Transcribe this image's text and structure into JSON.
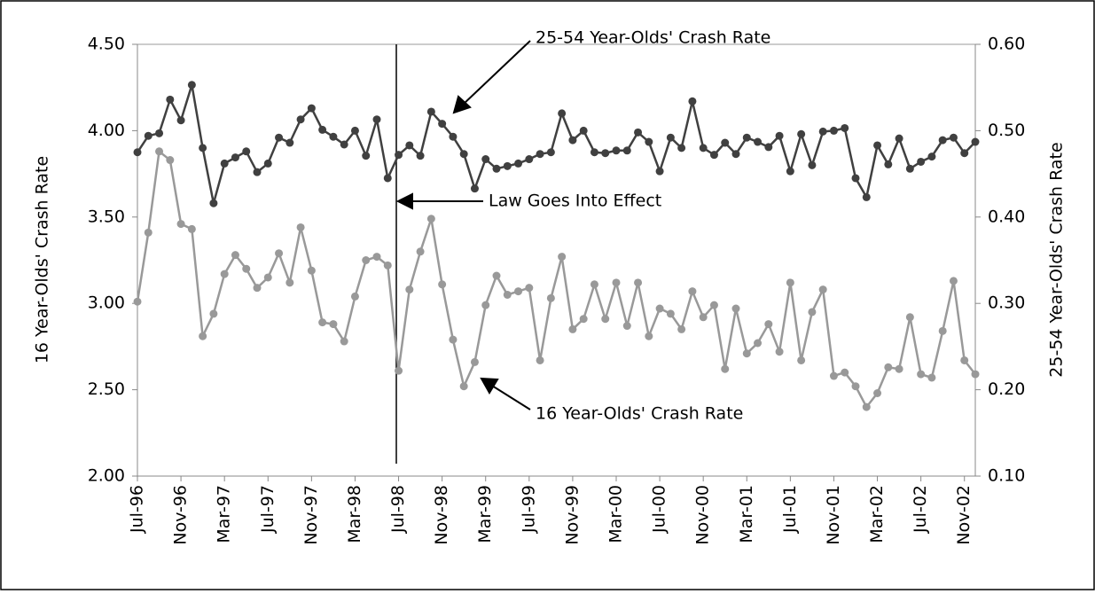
{
  "chart_data": {
    "type": "line",
    "categories": [
      "Jul-96",
      null,
      null,
      null,
      "Nov-96",
      null,
      null,
      null,
      "Mar-97",
      null,
      null,
      null,
      "Jul-97",
      null,
      null,
      null,
      "Nov-97",
      null,
      null,
      null,
      "Mar-98",
      null,
      null,
      null,
      "Jul-98",
      null,
      null,
      null,
      "Nov-98",
      null,
      null,
      null,
      "Mar-99",
      null,
      null,
      null,
      "Jul-99",
      null,
      null,
      null,
      "Nov-99",
      null,
      null,
      null,
      "Mar-00",
      null,
      null,
      null,
      "Jul-00",
      null,
      null,
      null,
      "Nov-00",
      null,
      null,
      null,
      "Mar-01",
      null,
      null,
      null,
      "Jul-01",
      null,
      null,
      null,
      "Nov-01",
      null,
      null,
      null,
      "Mar-02",
      null,
      null,
      null,
      "Jul-02",
      null,
      null,
      null,
      "Nov-02",
      null
    ],
    "series": [
      {
        "name": "25-54 Year-Olds' Crash Rate",
        "color": "#404040",
        "axis": "y2",
        "values": [
          0.475,
          0.494,
          0.497,
          0.536,
          0.512,
          0.553,
          0.48,
          0.416,
          0.462,
          0.469,
          0.476,
          0.452,
          0.462,
          0.492,
          0.486,
          0.513,
          0.526,
          0.501,
          0.493,
          0.484,
          0.5,
          0.471,
          0.513,
          0.445,
          0.472,
          0.483,
          0.471,
          0.522,
          0.508,
          0.493,
          0.473,
          0.433,
          0.467,
          0.456,
          0.459,
          0.462,
          0.467,
          0.473,
          0.475,
          0.52,
          0.489,
          0.5,
          0.475,
          0.474,
          0.477,
          0.477,
          0.498,
          0.487,
          0.453,
          0.492,
          0.48,
          0.534,
          0.48,
          0.472,
          0.486,
          0.473,
          0.492,
          0.487,
          0.481,
          0.494,
          0.453,
          0.496,
          0.46,
          0.499,
          0.5,
          0.503,
          0.445,
          0.423,
          0.483,
          0.461,
          0.491,
          0.456,
          0.464,
          0.47,
          0.489,
          0.492,
          0.474,
          0.487
        ]
      },
      {
        "name": "16 Year-Olds' Crash Rate",
        "color": "#999999",
        "axis": "y",
        "values": [
          3.01,
          3.41,
          3.88,
          3.83,
          3.46,
          3.43,
          2.81,
          2.94,
          3.17,
          3.28,
          3.2,
          3.09,
          3.15,
          3.29,
          3.12,
          3.44,
          3.19,
          2.89,
          2.88,
          2.78,
          3.04,
          3.25,
          3.27,
          3.22,
          2.61,
          3.08,
          3.3,
          3.49,
          3.11,
          2.79,
          2.52,
          2.66,
          2.99,
          3.16,
          3.05,
          3.07,
          3.09,
          2.67,
          3.03,
          3.27,
          2.85,
          2.91,
          3.11,
          2.91,
          3.12,
          2.87,
          3.12,
          2.81,
          2.97,
          2.94,
          2.85,
          3.07,
          2.92,
          2.99,
          2.62,
          2.97,
          2.71,
          2.77,
          2.88,
          2.72,
          3.12,
          2.67,
          2.95,
          3.08,
          2.58,
          2.6,
          2.52,
          2.4,
          2.48,
          2.63,
          2.62,
          2.92,
          2.59,
          2.57,
          2.84,
          3.13,
          2.67,
          2.59
        ]
      }
    ],
    "ylabel": "16 Year-Olds' Crash Rate",
    "y2label": "25-54 Year-Olds' Crash Rate",
    "annotation": "Law Goes Into Effect",
    "ylim": [
      2.0,
      4.5
    ],
    "yticks": [
      {
        "value": 2.0,
        "label": "2.00"
      },
      {
        "value": 2.5,
        "label": "2.50"
      },
      {
        "value": 3.0,
        "label": "3.00"
      },
      {
        "value": 3.5,
        "label": "3.50"
      },
      {
        "value": 4.0,
        "label": "4.00"
      },
      {
        "value": 4.5,
        "label": "4.50"
      }
    ],
    "y2lim": [
      0.1,
      0.6
    ],
    "y2ticks": [
      {
        "value": 0.1,
        "label": "0.10"
      },
      {
        "value": 0.2,
        "label": "0.20"
      },
      {
        "value": 0.3,
        "label": "0.30"
      },
      {
        "value": 0.4,
        "label": "0.40"
      },
      {
        "value": 0.5,
        "label": "0.50"
      },
      {
        "value": 0.6,
        "label": "0.60"
      }
    ]
  }
}
